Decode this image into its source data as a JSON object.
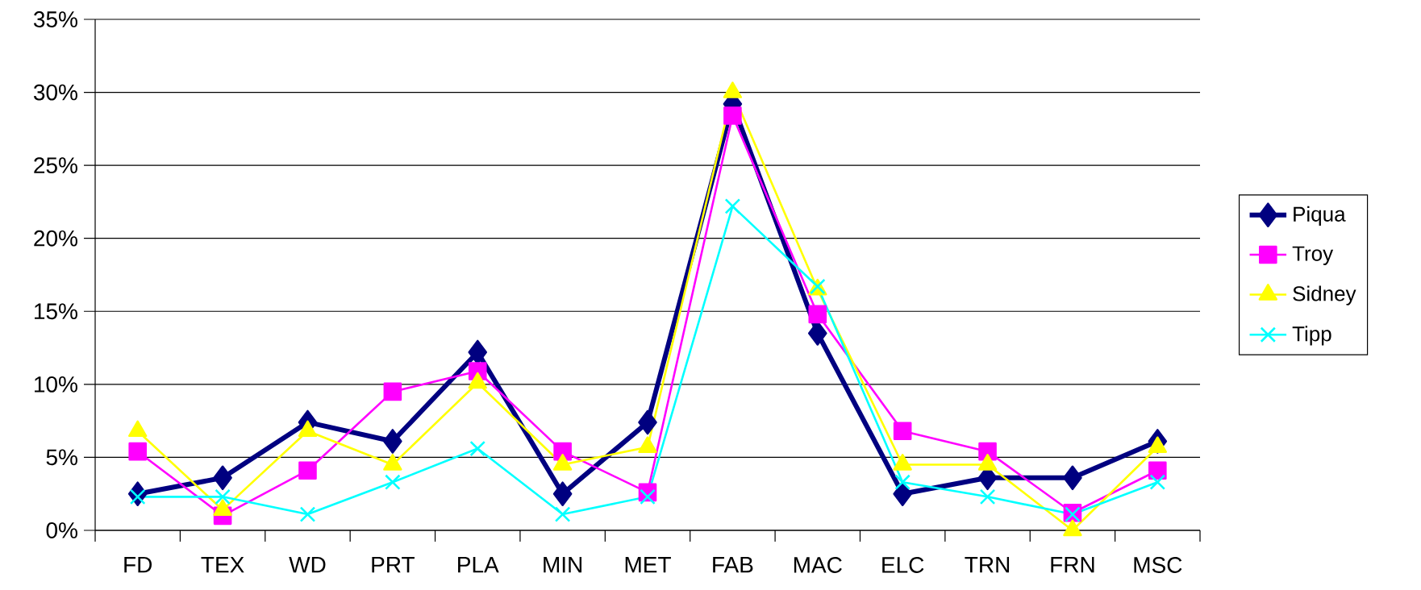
{
  "chart_data": {
    "type": "line",
    "categories": [
      "FD",
      "TEX",
      "WD",
      "PRT",
      "PLA",
      "MIN",
      "MET",
      "FAB",
      "MAC",
      "ELC",
      "TRN",
      "FRN",
      "MSC"
    ],
    "series": [
      {
        "name": "Piqua",
        "color": "#000080",
        "marker": "diamond",
        "values": [
          2.5,
          3.6,
          7.4,
          6.1,
          12.2,
          2.5,
          7.4,
          29.2,
          13.5,
          2.5,
          3.6,
          3.6,
          6.1
        ]
      },
      {
        "name": "Troy",
        "color": "#ff00ff",
        "marker": "square",
        "values": [
          5.4,
          1.0,
          4.1,
          9.5,
          10.9,
          5.4,
          2.6,
          28.4,
          14.8,
          6.8,
          5.4,
          1.2,
          4.1
        ]
      },
      {
        "name": "Sidney",
        "color": "#ffff00",
        "marker": "triangle",
        "values": [
          6.8,
          1.4,
          6.8,
          4.5,
          10.1,
          4.5,
          5.7,
          30.0,
          16.5,
          4.5,
          4.5,
          0,
          5.7
        ]
      },
      {
        "name": "Tipp",
        "color": "#00ffff",
        "marker": "cross",
        "values": [
          2.3,
          2.3,
          1.1,
          3.3,
          5.6,
          1.1,
          2.3,
          22.2,
          16.7,
          3.3,
          2.3,
          1.1,
          3.3
        ]
      }
    ],
    "ylim": [
      0,
      35
    ],
    "yticks": [
      {
        "value": 0,
        "label": "0%"
      },
      {
        "value": 5,
        "label": "5%"
      },
      {
        "value": 10,
        "label": "10%"
      },
      {
        "value": 15,
        "label": "15%"
      },
      {
        "value": 20,
        "label": "20%"
      },
      {
        "value": 25,
        "label": "25%"
      },
      {
        "value": 30,
        "label": "30%"
      },
      {
        "value": 35,
        "label": "35%"
      }
    ],
    "grid": "y",
    "legend": "right",
    "line_style": "solid"
  }
}
